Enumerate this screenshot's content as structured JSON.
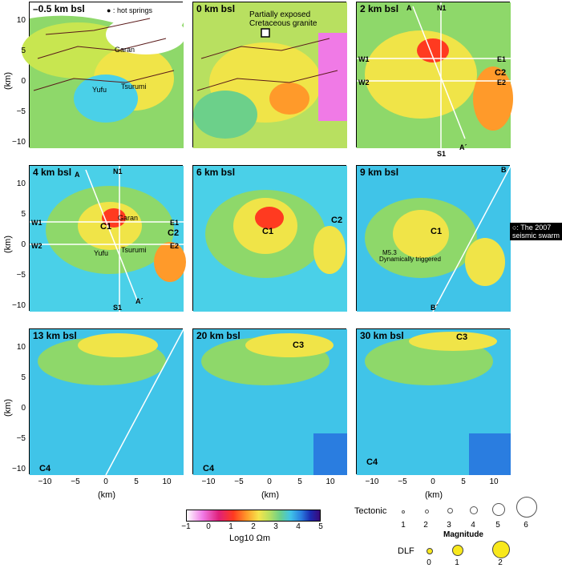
{
  "panels": [
    {
      "id": "p1",
      "title": "–0.5 km bsl",
      "labels": {
        "hot": "● : hot springs",
        "garan": "Garan",
        "yufu": "Yufu",
        "tsurumi": "Tsurumi"
      }
    },
    {
      "id": "p2",
      "title": "0 km bsl",
      "labels": {
        "granite": "Partially exposed\nCretaceous granite"
      }
    },
    {
      "id": "p3",
      "title": "2 km bsl",
      "labels": {
        "A": "A",
        "N1": "N1",
        "W1": "W1",
        "E1": "E1",
        "C2": "C2",
        "W2": "W2",
        "E2": "E2",
        "S1": "S1",
        "A2": "A´"
      }
    },
    {
      "id": "p4",
      "title": "4 km bsl",
      "labels": {
        "A": "A",
        "N1": "N1",
        "W1": "W1",
        "E1": "E1",
        "C2": "C2",
        "W2": "W2",
        "E2": "E2",
        "S1": "S1",
        "A2": "A´",
        "C1": "C1",
        "garan": "Garan",
        "yufu": "Yufu",
        "tsurumi": "Tsurumi"
      }
    },
    {
      "id": "p5",
      "title": "6 km bsl",
      "labels": {
        "C1": "C1",
        "C2": "C2"
      }
    },
    {
      "id": "p6",
      "title": "9 km bsl",
      "labels": {
        "B": "B",
        "C1": "C1",
        "B2": "B´",
        "m5": "M5.3",
        "dyn": "Dynamically triggered"
      }
    },
    {
      "id": "p7",
      "title": "13 km bsl",
      "labels": {
        "C4": "C4"
      }
    },
    {
      "id": "p8",
      "title": "20 km bsl",
      "labels": {
        "C3": "C3",
        "C4": "C4"
      }
    },
    {
      "id": "p9",
      "title": "30 km bsl",
      "labels": {
        "C3": "C3",
        "C4": "C4"
      }
    }
  ],
  "swarm_note": "○: The 2007\nseismic swarm",
  "axes": {
    "ylabel": "(km)",
    "xlabel": "(km)",
    "yticks": [
      "10",
      "5",
      "0",
      "−5",
      "−10"
    ],
    "xticks": [
      "−10",
      "−5",
      "0",
      "5",
      "10"
    ]
  },
  "colorbar": {
    "label": "Log10 Ωm",
    "ticks": [
      "−1",
      "0",
      "1",
      "2",
      "3",
      "4",
      "5"
    ]
  },
  "legend": {
    "tectonic_label": "Tectonic",
    "tectonic_mags": [
      "1",
      "2",
      "3",
      "4",
      "5",
      "6"
    ],
    "magnitude_title": "Magnitude",
    "dlf_label": "DLF",
    "dlf_mags": [
      "0",
      "1",
      "2"
    ]
  },
  "colors": {
    "hot_spring": "#d81818",
    "dlf": "#f8e81c",
    "fault": "#5a1a1a"
  }
}
